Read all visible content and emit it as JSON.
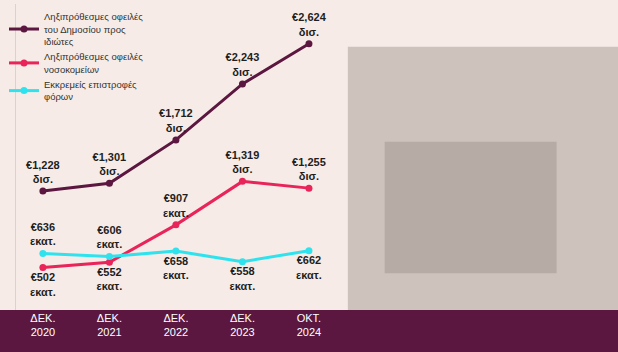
{
  "chart_data": {
    "type": "line",
    "categories": [
      "ΔΕΚ. 2020",
      "ΔΕΚ. 2021",
      "ΔΕΚ. 2022",
      "ΔΕΚ. 2023",
      "ΟΚΤ. 2024"
    ],
    "series": [
      {
        "name": "Ληξιπρόθεσμες οφειλές του Δημοσίου προς ιδιώτες",
        "color": "#5b1740",
        "values": [
          1228,
          1301,
          1712,
          2243,
          2624
        ],
        "value_labels": [
          "€1,228 δισ.",
          "€1,301 δισ.",
          "€1,712 δισ.",
          "€2,243 δισ.",
          "€2,624 δισ."
        ]
      },
      {
        "name": "Ληξιπρόθεσμες οφειλές νοσοκομείων",
        "color": "#e8245a",
        "values": [
          502,
          552,
          907,
          1319,
          1255
        ],
        "value_labels": [
          "€502 εκατ.",
          "€552 εκατ.",
          "€907 εκατ.",
          "€1,319 δισ.",
          "€1,255 δισ."
        ]
      },
      {
        "name": "Εκκρεμείς επιστροφές φόρων",
        "color": "#2fe3ee",
        "values": [
          636,
          606,
          658,
          558,
          662
        ],
        "value_labels": [
          "€636 εκατ.",
          "€606 εκατ.",
          "€658 εκατ.",
          "€558 εκατ.",
          "€662 εκατ."
        ]
      }
    ],
    "ylim": [
      100,
      3000
    ],
    "grid": false,
    "legend": "top-left",
    "data_labels": true,
    "tick_labels": "x",
    "marker": "circle"
  }
}
